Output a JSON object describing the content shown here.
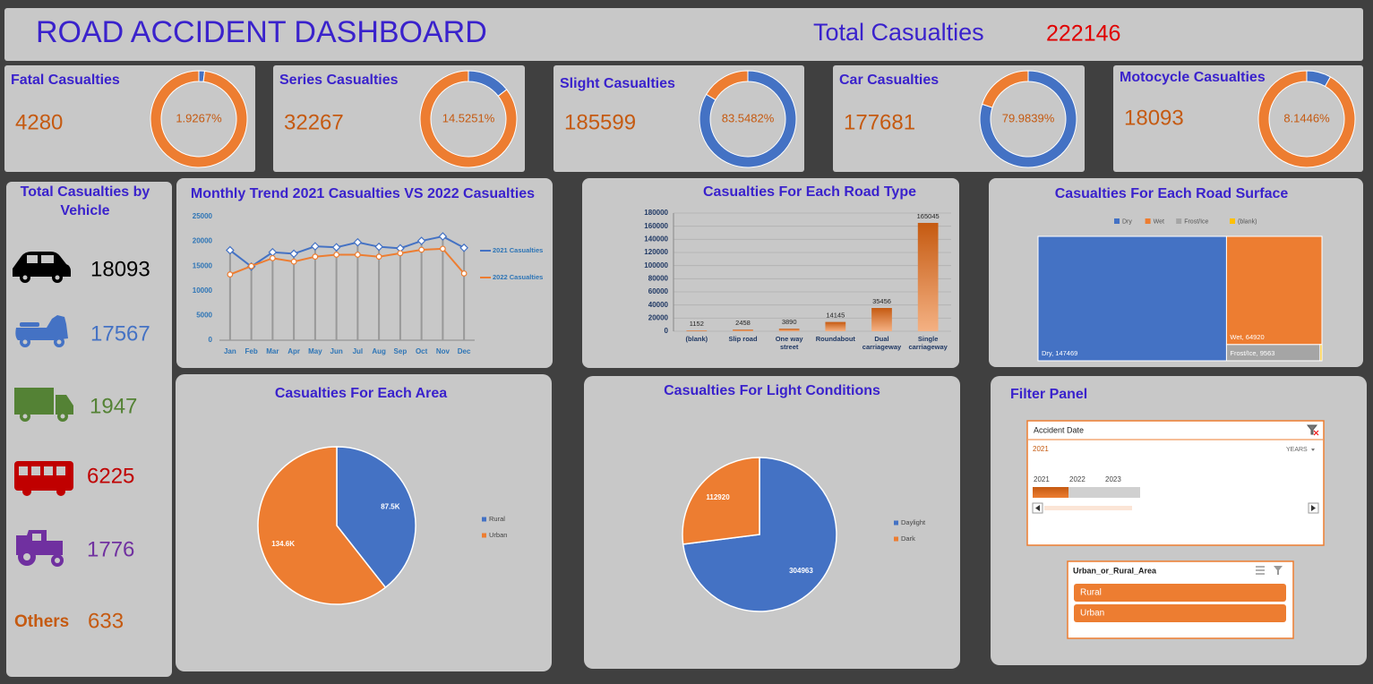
{
  "header": {
    "title": "ROAD ACCIDENT DASHBOARD",
    "total_label": "Total Casualties",
    "total": 222146
  },
  "kpis": {
    "colors": [
      "#4472c4",
      "#ed7d31"
    ],
    "items": [
      {
        "title": "Fatal Casualties",
        "value": 4280,
        "share": 1.9267,
        "share_label": "1.9267%"
      },
      {
        "title": "Series Casualties",
        "value": 32267,
        "share": 14.5251,
        "share_label": "14.5251%"
      },
      {
        "title": "Slight Casualties",
        "value": 185599,
        "share": 83.5482,
        "share_label": "83.5482%"
      },
      {
        "title": "Car Casualties",
        "value": 177681,
        "share": 79.9839,
        "share_label": "79.9839%"
      },
      {
        "title": "Motocycle Casualties",
        "value": 18093,
        "share": 8.1446,
        "share_label": "8.1446%"
      }
    ]
  },
  "vehicles": {
    "title": "Total Casualties by Vehicle",
    "items": [
      {
        "value": 18093,
        "color": "#000000"
      },
      {
        "value": 17567,
        "color": "#4472c4"
      },
      {
        "value": 1947,
        "color": "#548235"
      },
      {
        "value": 6225,
        "color": "#c00000"
      },
      {
        "value": 1776,
        "color": "#7030a0"
      },
      {
        "label": "Others",
        "value": 633,
        "color": "#c55a11"
      }
    ]
  },
  "chart_data": [
    {
      "type": "line",
      "title": "Monthly Trend 2021 Casualties VS  2022 Casualties",
      "categories": [
        "Jan",
        "Feb",
        "Mar",
        "Apr",
        "May",
        "Jun",
        "Jul",
        "Aug",
        "Sep",
        "Oct",
        "Nov",
        "Dec"
      ],
      "series": [
        {
          "name": "2021 Casualties",
          "color": "#4472c4",
          "values": [
            18200,
            14900,
            17800,
            17500,
            19000,
            18800,
            19800,
            18900,
            18600,
            20100,
            21000,
            18700
          ]
        },
        {
          "name": "2022 Casualties",
          "color": "#ed7d31",
          "values": [
            13300,
            15000,
            16600,
            15900,
            16900,
            17300,
            17300,
            16900,
            17600,
            18300,
            18500,
            13500
          ]
        }
      ],
      "ylim": [
        0,
        25000
      ],
      "yticks": [
        0,
        5000,
        10000,
        15000,
        20000,
        25000
      ],
      "grid": false
    },
    {
      "type": "bar",
      "title": "Casualties For Each Road Type",
      "categories": [
        "(blank)",
        "Slip road",
        "One way street",
        "Roundabout",
        "Dual carriageway",
        "Single carriageway"
      ],
      "values": [
        1152,
        2458,
        3890,
        14145,
        35456,
        165045
      ],
      "color": "#ed7d31",
      "ylim": [
        0,
        180000
      ],
      "yticks": [
        0,
        20000,
        40000,
        60000,
        80000,
        100000,
        120000,
        140000,
        160000,
        180000
      ],
      "grid": true
    },
    {
      "type": "treemap",
      "title": "Casualties For Each Road Surface",
      "categories": [
        "Dry",
        "Wet",
        "Frost/Ice",
        "(blank)"
      ],
      "values": [
        147469,
        64920,
        9563,
        194
      ],
      "value_labels": [
        "Dry, 147469",
        "Wet, 64920",
        "Frost/Ice, 9563",
        null
      ],
      "colors": [
        "#4472c4",
        "#ed7d31",
        "#a5a5a5",
        "#ffc000"
      ]
    },
    {
      "type": "pie",
      "title": "Casualties For Each Area",
      "categories": [
        "Rural",
        "Urban"
      ],
      "values": [
        87500,
        134600
      ],
      "value_labels": [
        "87.5K",
        "134.6K"
      ],
      "colors": [
        "#4472c4",
        "#ed7d31"
      ]
    },
    {
      "type": "pie",
      "title": "Casualties For Light Conditions",
      "categories": [
        "Daylight",
        "Dark"
      ],
      "values": [
        304963,
        112920
      ],
      "colors": [
        "#4472c4",
        "#ed7d31"
      ]
    }
  ],
  "filter_panel": {
    "title": "Filter Panel",
    "timeline": {
      "title": "Accident Date",
      "selected": "2021",
      "level": "YEARS",
      "years": [
        "2021",
        "2022",
        "2023"
      ]
    },
    "slicer": {
      "title": "Urban_or_Rural_Area",
      "items": [
        "Rural",
        "Urban"
      ]
    }
  }
}
